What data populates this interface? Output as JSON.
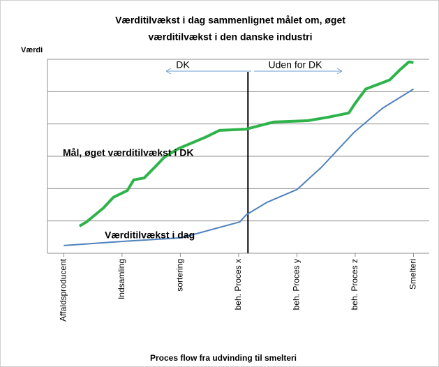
{
  "chart_data": {
    "type": "line",
    "title": [
      "Værditilvækst i dag sammenlignet målet om, øget",
      "værditilvækst i den danske industri"
    ],
    "y_label": "Værdi",
    "x_label": "Proces flow fra udvinding til smelteri",
    "xlim": [
      -0.28,
      6.27
    ],
    "xticks": [
      {
        "value": 0,
        "label": "Affaldsproducent"
      },
      {
        "value": 1,
        "label": "Indsamling"
      },
      {
        "value": 2,
        "label": "sortering"
      },
      {
        "value": 3,
        "label": "beh. Proces x"
      },
      {
        "value": 4,
        "label": "beh. Proces y"
      },
      {
        "value": 5,
        "label": "beh. Proces z"
      },
      {
        "value": 6,
        "label": "Smelteri"
      }
    ],
    "ylim": [
      0,
      6
    ],
    "yticks": [
      0,
      1,
      2,
      3,
      4,
      5,
      6
    ],
    "grid": true,
    "divider_x": 3.16,
    "annotations": [
      "DK",
      "Uden for DK"
    ],
    "series": [
      {
        "name": "Mål, øget værditilvækst i DK",
        "color": "#2eb34a",
        "x": [
          0.27,
          0.39,
          0.68,
          0.85,
          1.09,
          1.2,
          1.38,
          1.56,
          1.73,
          1.97,
          2.26,
          2.43,
          2.67,
          3.13,
          3.6,
          4.18,
          4.54,
          4.89,
          5.0,
          5.18,
          5.59,
          5.77,
          5.92,
          6.0
        ],
        "values": [
          0.84,
          0.97,
          1.4,
          1.73,
          1.94,
          2.27,
          2.33,
          2.66,
          2.98,
          3.24,
          3.46,
          3.59,
          3.8,
          3.84,
          4.06,
          4.1,
          4.21,
          4.34,
          4.64,
          5.08,
          5.36,
          5.68,
          5.92,
          5.9
        ]
      },
      {
        "name": "Værditilvækst i dag",
        "color": "#4f81bd",
        "x": [
          0,
          1.03,
          2.02,
          3.02,
          3.13,
          3.49,
          4.0,
          4.42,
          4.98,
          5.47,
          6.0
        ],
        "values": [
          0.24,
          0.37,
          0.48,
          0.97,
          1.19,
          1.58,
          1.97,
          2.66,
          3.74,
          4.49,
          5.08
        ]
      }
    ]
  }
}
